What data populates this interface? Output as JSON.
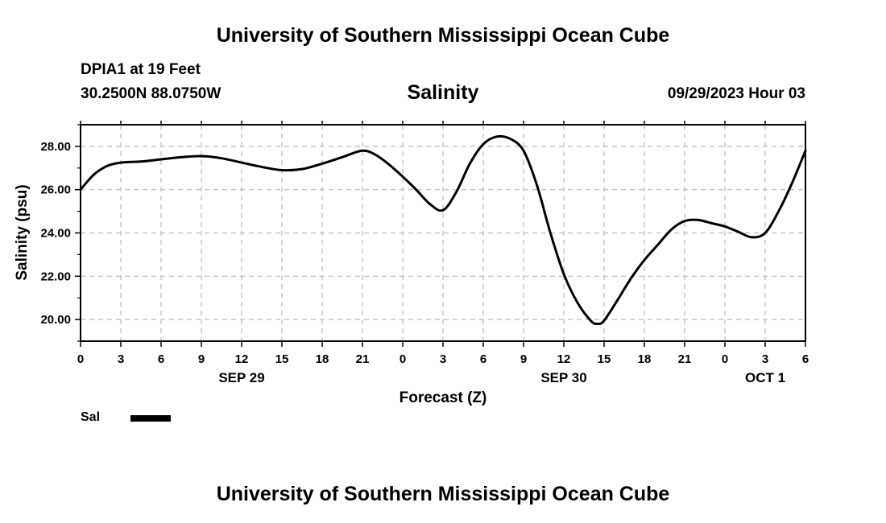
{
  "header": {
    "title": "University of Southern Mississippi Ocean Cube",
    "station": "DPIA1 at 19 Feet",
    "coords": "30.2500N  88.0750W",
    "parameter": "Salinity",
    "run_time": "09/29/2023 Hour 03"
  },
  "footer": {
    "title": "University of Southern Mississippi Ocean Cube"
  },
  "legend": {
    "label": "Sal"
  },
  "chart_data": {
    "type": "line",
    "title": "Salinity",
    "xlabel": "Forecast (Z)",
    "ylabel": "Salinity (psu)",
    "xlim": [
      0,
      54
    ],
    "ylim": [
      19.0,
      29.0
    ],
    "grid": true,
    "legend_position": "bottom-left",
    "line_color": "#000000",
    "x_ticks": [
      {
        "x": 0,
        "label": "0"
      },
      {
        "x": 3,
        "label": "3"
      },
      {
        "x": 6,
        "label": "6"
      },
      {
        "x": 9,
        "label": "9"
      },
      {
        "x": 12,
        "label": "12"
      },
      {
        "x": 15,
        "label": "15"
      },
      {
        "x": 18,
        "label": "18"
      },
      {
        "x": 21,
        "label": "21"
      },
      {
        "x": 24,
        "label": "0"
      },
      {
        "x": 27,
        "label": "3"
      },
      {
        "x": 30,
        "label": "6"
      },
      {
        "x": 33,
        "label": "9"
      },
      {
        "x": 36,
        "label": "12"
      },
      {
        "x": 39,
        "label": "15"
      },
      {
        "x": 42,
        "label": "18"
      },
      {
        "x": 45,
        "label": "21"
      },
      {
        "x": 48,
        "label": "0"
      },
      {
        "x": 51,
        "label": "3"
      },
      {
        "x": 54,
        "label": "6"
      }
    ],
    "date_labels": [
      {
        "x": 12,
        "label": "SEP 29"
      },
      {
        "x": 36,
        "label": "SEP 30"
      },
      {
        "x": 51,
        "label": "OCT 1"
      }
    ],
    "y_ticks": [
      {
        "y": 20,
        "label": "20.00"
      },
      {
        "y": 22,
        "label": "22.00"
      },
      {
        "y": 24,
        "label": "24.00"
      },
      {
        "y": 26,
        "label": "26.00"
      },
      {
        "y": 28,
        "label": "28.00"
      }
    ],
    "series": [
      {
        "name": "Sal",
        "x": [
          0,
          1,
          2,
          3,
          4.5,
          6,
          7.5,
          9,
          10.5,
          12,
          13.5,
          15,
          16.5,
          18,
          19.5,
          21,
          22,
          23,
          24,
          25,
          26,
          27,
          28,
          29,
          30,
          31,
          32,
          33,
          34,
          35,
          36,
          37,
          38,
          38.5,
          39,
          40,
          41,
          42,
          43,
          44,
          45,
          46,
          47,
          48,
          49,
          50,
          51,
          52,
          53,
          54
        ],
        "y": [
          26.0,
          26.7,
          27.1,
          27.25,
          27.3,
          27.4,
          27.5,
          27.55,
          27.45,
          27.25,
          27.05,
          26.9,
          26.95,
          27.2,
          27.5,
          27.8,
          27.6,
          27.15,
          26.6,
          26.0,
          25.35,
          25.05,
          25.9,
          27.2,
          28.1,
          28.45,
          28.35,
          27.8,
          26.2,
          24.0,
          22.1,
          20.8,
          19.95,
          19.8,
          19.95,
          20.9,
          21.9,
          22.75,
          23.45,
          24.15,
          24.55,
          24.6,
          24.45,
          24.3,
          24.05,
          23.8,
          24.0,
          25.0,
          26.3,
          27.8
        ]
      }
    ]
  }
}
